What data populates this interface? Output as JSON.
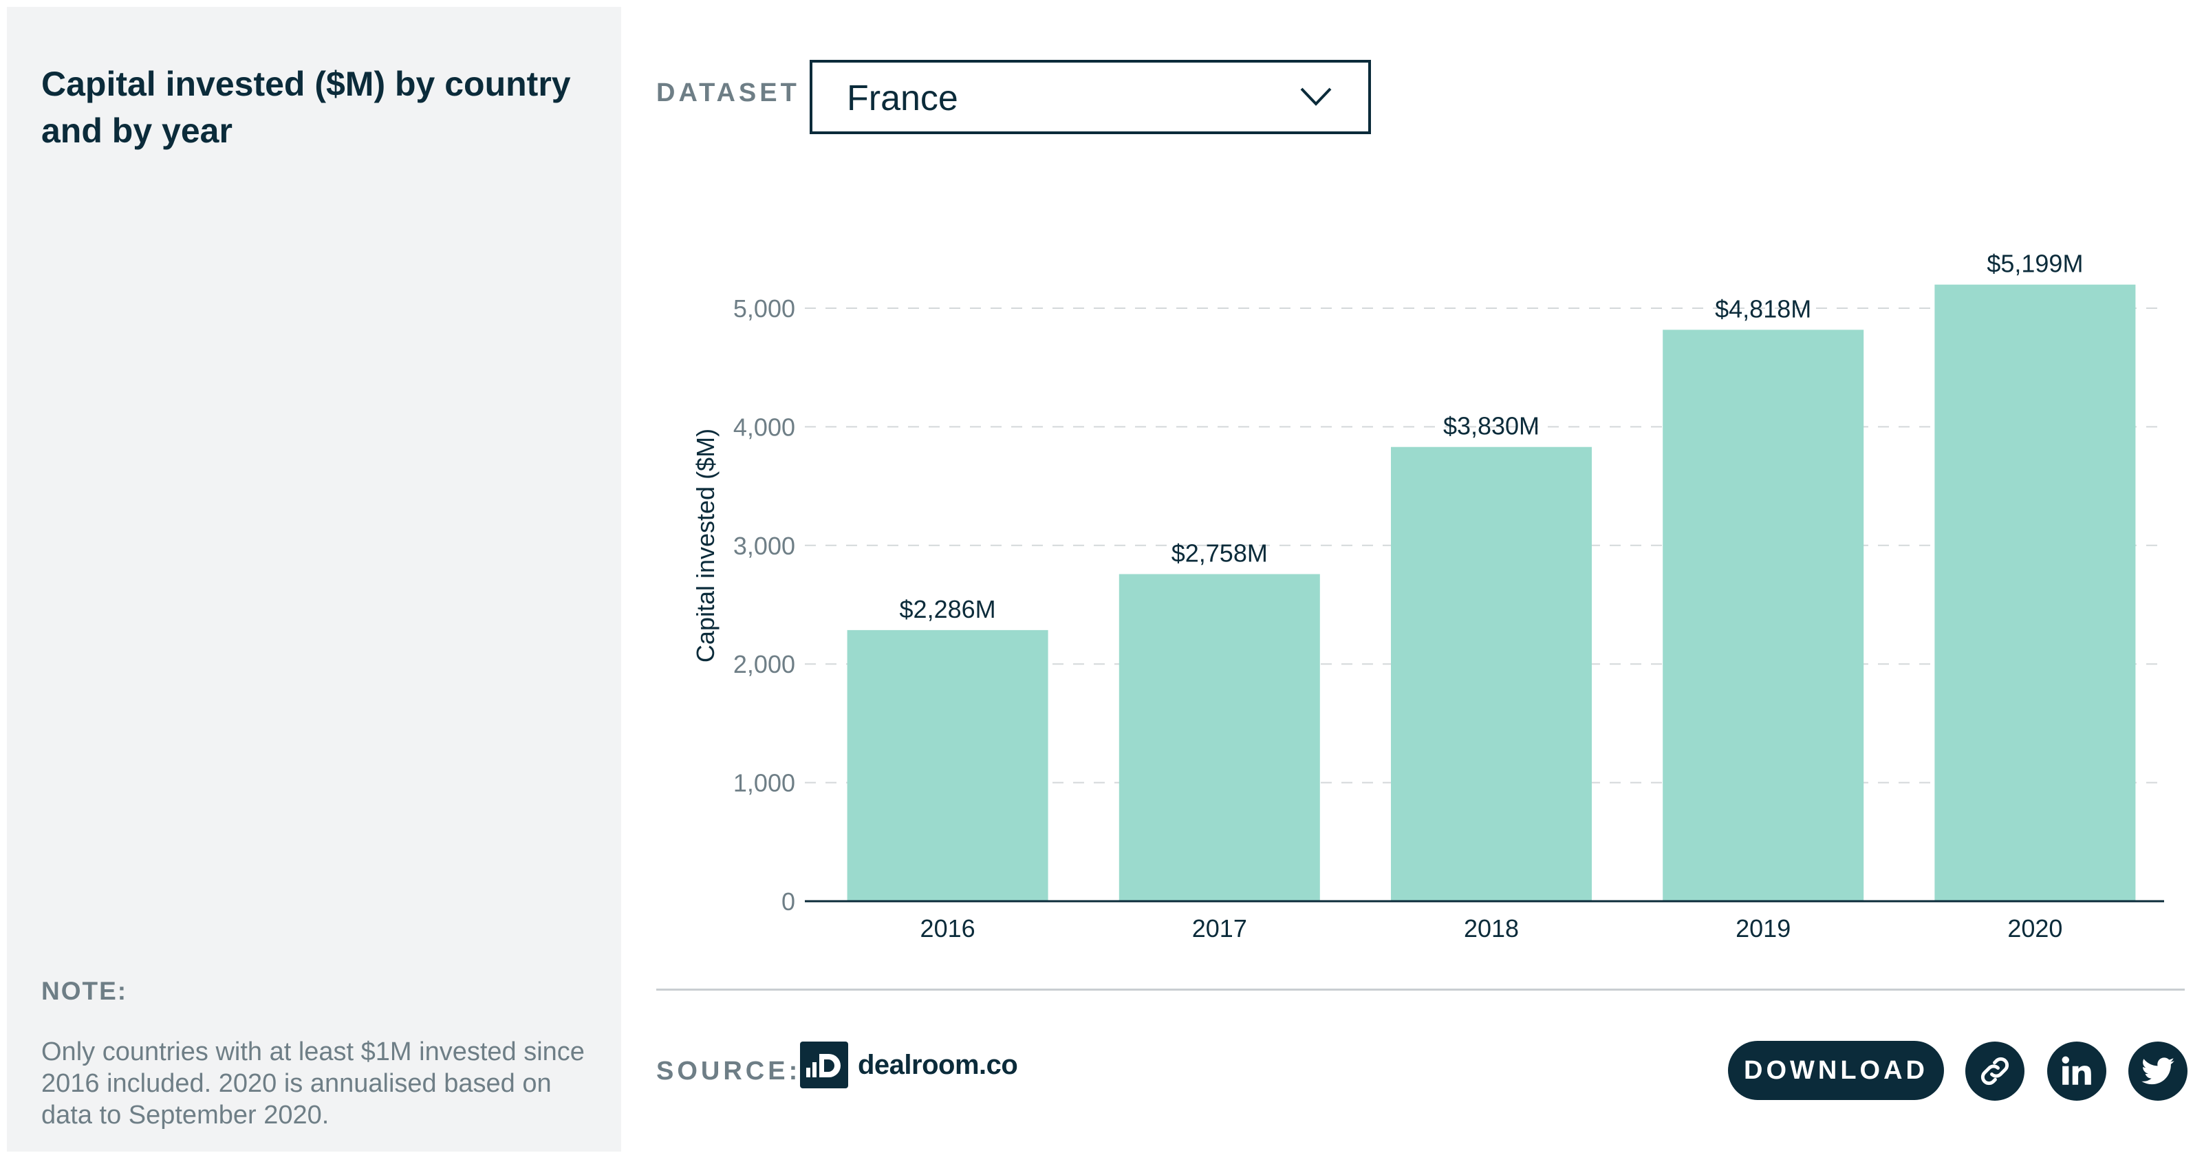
{
  "sidebar": {
    "title": "Capital invested ($M) by country and by year",
    "note_label": "NOTE:",
    "note_text": "Only countries with at least $1M invested since 2016 included. 2020 is annualised based on data to September 2020."
  },
  "dataset": {
    "label": "DATASET",
    "selected": "France"
  },
  "footer": {
    "source_label": "SOURCE:",
    "source_name": "dealroom.co",
    "download_label": "DOWNLOAD",
    "share_icons": [
      "link-icon",
      "linkedin-icon",
      "twitter-icon"
    ]
  },
  "colors": {
    "bar": "#9bdacd",
    "accent": "#0b2b3a",
    "muted": "#6e7e86",
    "panel": "#f2f3f4"
  },
  "chart_data": {
    "type": "bar",
    "categories": [
      "2016",
      "2017",
      "2018",
      "2019",
      "2020"
    ],
    "values": [
      2286,
      2758,
      3830,
      4818,
      5199
    ],
    "data_labels": [
      "$2,286M",
      "$2,758M",
      "$3,830M",
      "$4,818M",
      "$5,199M"
    ],
    "ylabel": "Capital invested ($M)",
    "xlabel": "",
    "ylim": [
      0,
      5200
    ],
    "yticks": [
      0,
      1000,
      2000,
      3000,
      4000,
      5000
    ],
    "ytick_labels": [
      "0",
      "1,000",
      "2,000",
      "3,000",
      "4,000",
      "5,000"
    ],
    "grid": true
  }
}
